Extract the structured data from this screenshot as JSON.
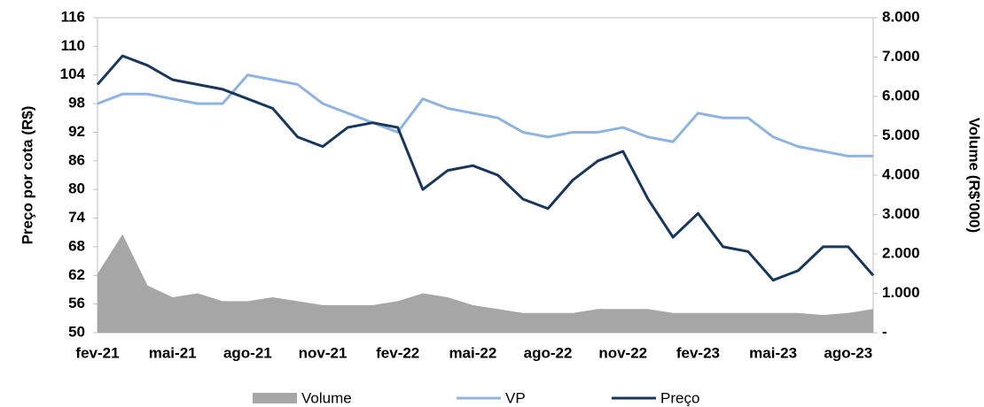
{
  "chart_data": {
    "type": "line",
    "y_label": "Preço por cota (R$)",
    "y2_label": "Volume (R$'000)",
    "categories": [
      "fev-21",
      null,
      null,
      "mai-21",
      null,
      null,
      "ago-21",
      null,
      null,
      "nov-21",
      null,
      null,
      "fev-22",
      null,
      null,
      "mai-22",
      null,
      null,
      "ago-22",
      null,
      null,
      "nov-22",
      null,
      null,
      "fev-23",
      null,
      null,
      "mai-23",
      null,
      null,
      "ago-23",
      null
    ],
    "series": [
      {
        "name": "Volume",
        "color": "#a6a6a6",
        "axis": "y2",
        "kind": "area",
        "values": [
          1500,
          2500,
          1200,
          900,
          1000,
          800,
          800,
          900,
          800,
          700,
          700,
          700,
          800,
          1000,
          900,
          700,
          600,
          500,
          500,
          500,
          600,
          600,
          600,
          500,
          500,
          500,
          500,
          500,
          500,
          450,
          500,
          600
        ]
      },
      {
        "name": "VP",
        "color": "#8db4e2",
        "kind": "line",
        "values": [
          98,
          100,
          100,
          99,
          98,
          98,
          104,
          103,
          102,
          98,
          96,
          94,
          92,
          99,
          97,
          96,
          95,
          92,
          91,
          92,
          92,
          93,
          91,
          90,
          96,
          95,
          95,
          91,
          89,
          88,
          87,
          87
        ]
      },
      {
        "name": "Preço",
        "color": "#17375e",
        "kind": "line",
        "values": [
          102,
          108,
          106,
          103,
          102,
          101,
          99,
          97,
          91,
          89,
          93,
          94,
          93,
          80,
          84,
          85,
          83,
          78,
          76,
          82,
          86,
          88,
          78,
          70,
          75,
          68,
          67,
          61,
          63,
          68,
          68,
          62
        ]
      }
    ],
    "ylim": [
      50,
      116
    ],
    "yticks": [
      50,
      56,
      62,
      68,
      74,
      80,
      86,
      92,
      98,
      104,
      110,
      116
    ],
    "y2lim": [
      0,
      8000
    ],
    "y2ticks": [
      {
        "value": 0,
        "label": "-"
      },
      {
        "value": 1000,
        "label": "1.000"
      },
      {
        "value": 2000,
        "label": "2.000"
      },
      {
        "value": 3000,
        "label": "3.000"
      },
      {
        "value": 4000,
        "label": "4.000"
      },
      {
        "value": 5000,
        "label": "5.000"
      },
      {
        "value": 6000,
        "label": "6.000"
      },
      {
        "value": 7000,
        "label": "7.000"
      },
      {
        "value": 8000,
        "label": "8.000"
      }
    ],
    "grid": false,
    "legend": "bottom"
  }
}
